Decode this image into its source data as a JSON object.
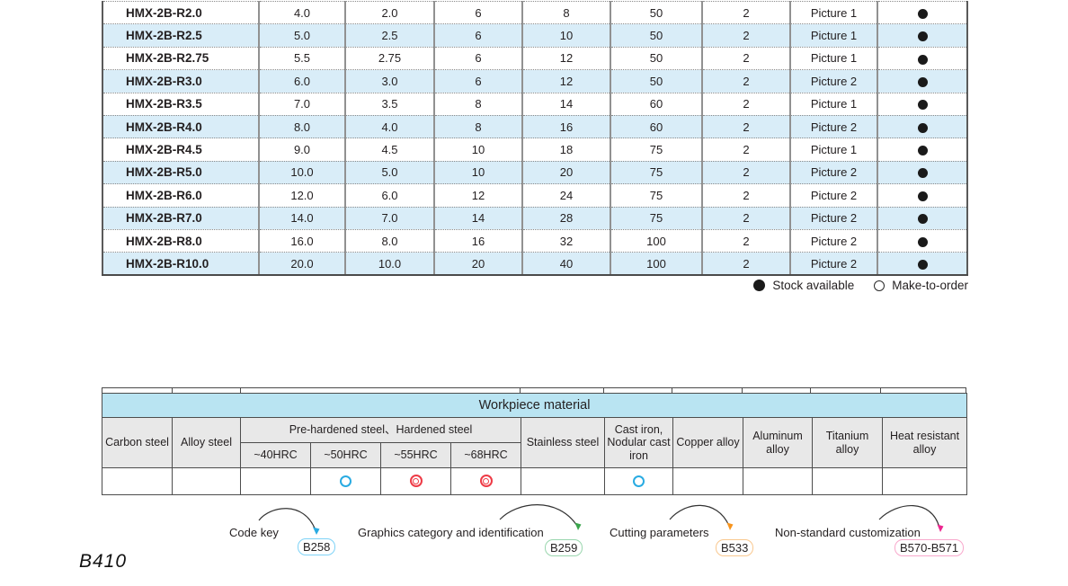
{
  "page_label": "B410",
  "colors": {
    "alt_row_bg": "#d9edf8",
    "workpiece_title_bg": "#b9e4f2",
    "workpiece_header_bg": "#e8e8e8",
    "open_circle": "#29abe2",
    "double_circle": "#ee3b46",
    "stock_dot": "#1a1a1a"
  },
  "spec_table": {
    "rows": [
      {
        "code": "HMX-2B-R2.0",
        "values": [
          "4.0",
          "2.0",
          "6",
          "8",
          "50",
          "2"
        ],
        "picture": "Picture 1",
        "stock": "filled-circle"
      },
      {
        "code": "HMX-2B-R2.5",
        "values": [
          "5.0",
          "2.5",
          "6",
          "10",
          "50",
          "2"
        ],
        "picture": "Picture 1",
        "stock": "filled-circle"
      },
      {
        "code": "HMX-2B-R2.75",
        "values": [
          "5.5",
          "2.75",
          "6",
          "12",
          "50",
          "2"
        ],
        "picture": "Picture 1",
        "stock": "filled-circle"
      },
      {
        "code": "HMX-2B-R3.0",
        "values": [
          "6.0",
          "3.0",
          "6",
          "12",
          "50",
          "2"
        ],
        "picture": "Picture 2",
        "stock": "filled-circle"
      },
      {
        "code": "HMX-2B-R3.5",
        "values": [
          "7.0",
          "3.5",
          "8",
          "14",
          "60",
          "2"
        ],
        "picture": "Picture 1",
        "stock": "filled-circle"
      },
      {
        "code": "HMX-2B-R4.0",
        "values": [
          "8.0",
          "4.0",
          "8",
          "16",
          "60",
          "2"
        ],
        "picture": "Picture 2",
        "stock": "filled-circle"
      },
      {
        "code": "HMX-2B-R4.5",
        "values": [
          "9.0",
          "4.5",
          "10",
          "18",
          "75",
          "2"
        ],
        "picture": "Picture 1",
        "stock": "filled-circle"
      },
      {
        "code": "HMX-2B-R5.0",
        "values": [
          "10.0",
          "5.0",
          "10",
          "20",
          "75",
          "2"
        ],
        "picture": "Picture 2",
        "stock": "filled-circle"
      },
      {
        "code": "HMX-2B-R6.0",
        "values": [
          "12.0",
          "6.0",
          "12",
          "24",
          "75",
          "2"
        ],
        "picture": "Picture 2",
        "stock": "filled-circle"
      },
      {
        "code": "HMX-2B-R7.0",
        "values": [
          "14.0",
          "7.0",
          "14",
          "28",
          "75",
          "2"
        ],
        "picture": "Picture 2",
        "stock": "filled-circle"
      },
      {
        "code": "HMX-2B-R8.0",
        "values": [
          "16.0",
          "8.0",
          "16",
          "32",
          "100",
          "2"
        ],
        "picture": "Picture 2",
        "stock": "filled-circle"
      },
      {
        "code": "HMX-2B-R10.0",
        "values": [
          "20.0",
          "10.0",
          "20",
          "40",
          "100",
          "2"
        ],
        "picture": "Picture 2",
        "stock": "filled-circle"
      }
    ]
  },
  "legend": {
    "stock_available": "Stock available",
    "make_to_order": "Make-to-order",
    "stock_symbol": "filled-circle",
    "order_symbol": "open-circle"
  },
  "workpiece": {
    "title": "Workpiece material",
    "headers": {
      "carbon": "Carbon steel",
      "alloy": "Alloy steel",
      "prehardened_group": "Pre-hardened steel、Hardened steel",
      "sub": [
        "~40HRC",
        "~50HRC",
        "~55HRC",
        "~68HRC"
      ],
      "stainless": "Stainless steel",
      "cast_iron": "Cast iron, Nodular cast iron",
      "copper": "Copper alloy",
      "aluminum": "Aluminum alloy",
      "titanium": "Titanium alloy",
      "heat": "Heat resistant alloy"
    },
    "data_row": [
      "",
      "",
      "",
      "open-circle",
      "double-circle",
      "double-circle",
      "",
      "open-circle",
      "",
      "",
      "",
      ""
    ]
  },
  "annotations": [
    {
      "label": "Code key",
      "badge": "B258",
      "arrow_color": "#29abe2",
      "badge_border": "#7ed3f7"
    },
    {
      "label": "Graphics category and identification",
      "badge": "B259",
      "arrow_color": "#3aa54c",
      "badge_border": "#9ad6ae"
    },
    {
      "label": "Cutting parameters",
      "badge": "B533",
      "arrow_color": "#f7941d",
      "badge_border": "#f9c88f"
    },
    {
      "label": "Non-standard customization",
      "badge": "B570-B571",
      "arrow_color": "#ec268f",
      "badge_border": "#f8a8cc"
    }
  ]
}
